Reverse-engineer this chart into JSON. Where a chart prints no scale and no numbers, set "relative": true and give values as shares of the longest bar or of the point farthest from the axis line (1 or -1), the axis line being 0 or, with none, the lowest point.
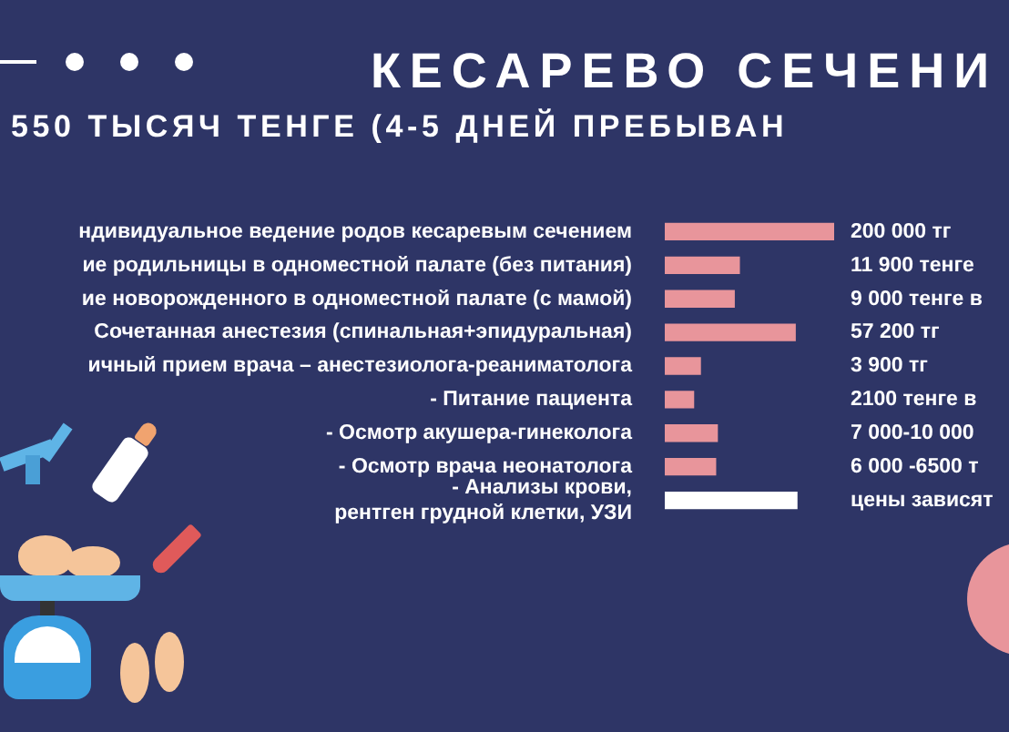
{
  "chart_data": {
    "type": "bar",
    "orientation": "horizontal",
    "relative": true,
    "title": "КЕСАРЕВО СЕЧЕНИ",
    "subtitle": "550 ТЫСЯЧ ТЕНГЕ (4-5 ДНЕЙ ПРЕБЫВАН",
    "categories": [
      "ндивидуальное ведение родов кесаревым сечением",
      "ие родильницы в одноместной палате (без питания)",
      "ие новорожденного в одноместной палате (с мамой)",
      "Сочетанная анестезия (спинальная+эпидуральная)",
      "ичный прием врача – анестезиолога-реаниматолога",
      "- Питание пациента",
      "- Осмотр акушера-гинеколога",
      "- Осмотр врача неонатолога",
      "- Анализы крови,\nрентген грудной клетки, УЗИ"
    ],
    "values": [
      1,
      0.44,
      0.41,
      0.77,
      0.21,
      0.17,
      0.31,
      0.3,
      0.78
    ],
    "colors": [
      "#e8959b",
      "#e8959b",
      "#e8959b",
      "#e8959b",
      "#e8959b",
      "#e8959b",
      "#e8959b",
      "#e8959b",
      "#ffffff"
    ],
    "annotations": [
      "200 000 тг",
      "11 900 тенге",
      "9 000 тенге в",
      "57 200 тг",
      "3 900 тг",
      "2100 тенге в",
      "7 000-10 000",
      "6 000 -6500 т",
      "цены зависят"
    ]
  }
}
